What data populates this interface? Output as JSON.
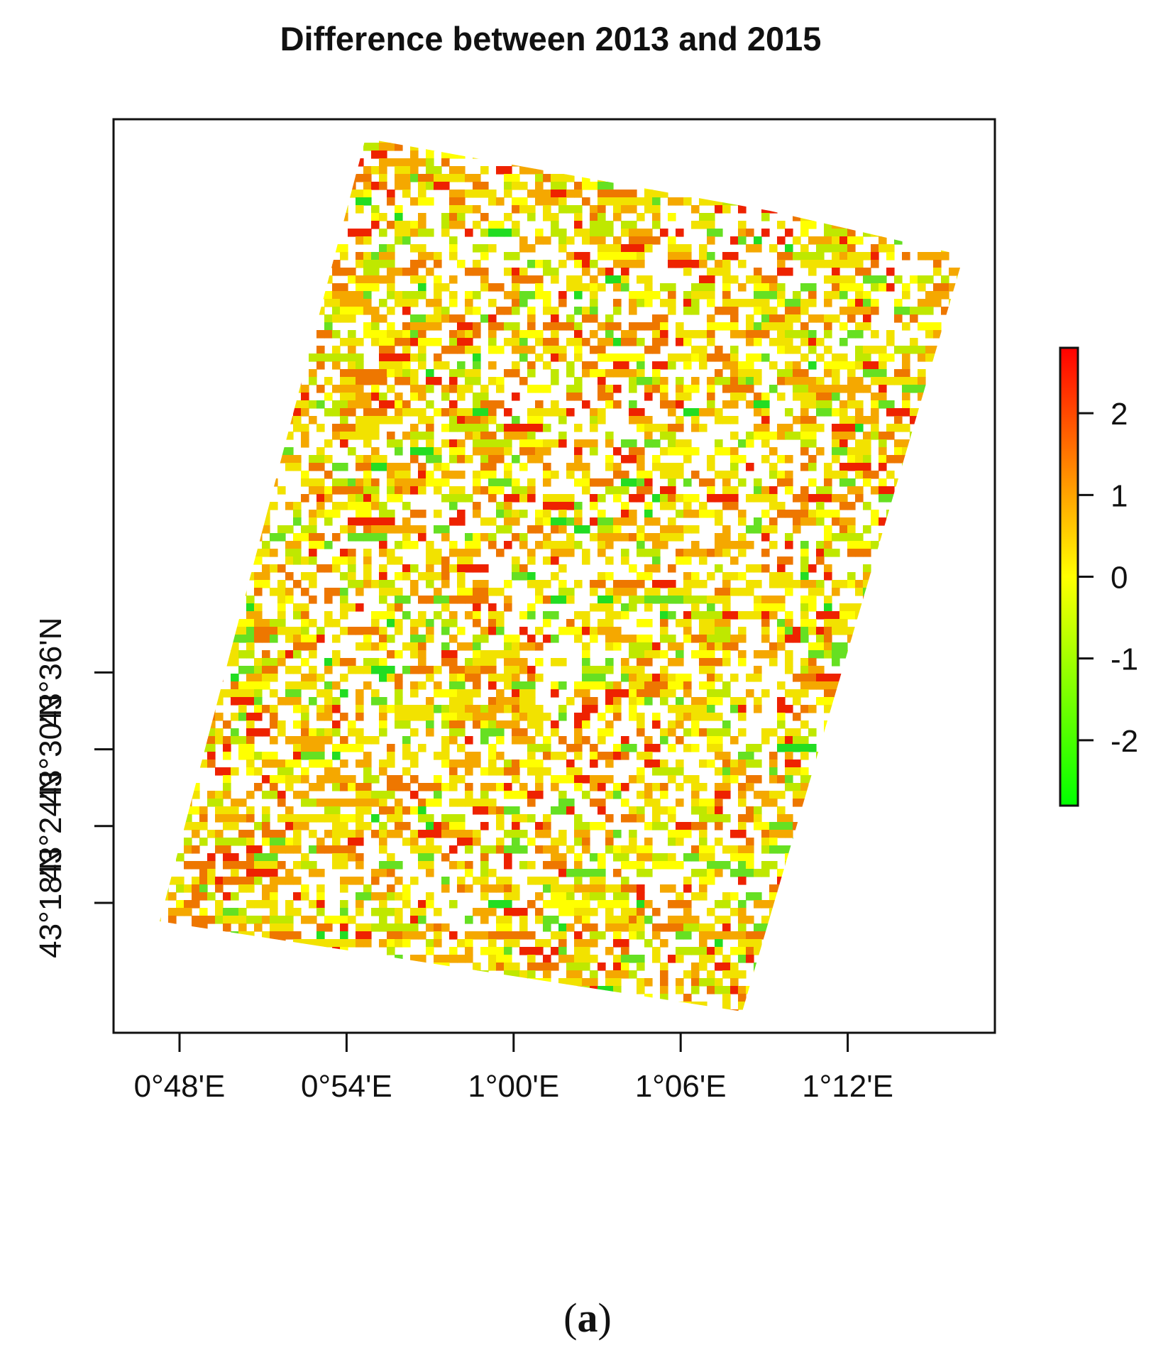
{
  "title": "Difference between 2013 and 2015",
  "caption": {
    "open": "(",
    "letter": "a",
    "close": ")"
  },
  "map": {
    "x_axis": {
      "ticks": [
        {
          "label": "0°48'E",
          "value": 0.8
        },
        {
          "label": "0°54'E",
          "value": 0.9
        },
        {
          "label": "1°00'E",
          "value": 1.0
        },
        {
          "label": "1°06'E",
          "value": 1.1
        },
        {
          "label": "1°12'E",
          "value": 1.2
        }
      ]
    },
    "y_axis": {
      "ticks": [
        {
          "label": "43°18'N",
          "value": 43.3
        },
        {
          "label": "43°24'N",
          "value": 43.4
        },
        {
          "label": "43°30'N",
          "value": 43.5
        },
        {
          "label": "43°36'N",
          "value": 43.6
        }
      ]
    },
    "raster_value_range": [
      -2.8,
      2.8
    ]
  },
  "colorbar": {
    "ticks": [
      {
        "label": "2",
        "value": 2
      },
      {
        "label": "1",
        "value": 1
      },
      {
        "label": "0",
        "value": 0
      },
      {
        "label": "-1",
        "value": -1
      },
      {
        "label": "-2",
        "value": -2
      }
    ],
    "colors": [
      "#00ff00",
      "#ffff00",
      "#ff0000"
    ]
  },
  "raster_colors": {
    "red": "#ee2200",
    "orange": "#ee7700",
    "orange_light": "#f5a800",
    "yellow": "#f2e200",
    "yellow_bright": "#ffff00",
    "yellow_green": "#bfe800",
    "green": "#66e022",
    "green_bright": "#22dd22"
  }
}
